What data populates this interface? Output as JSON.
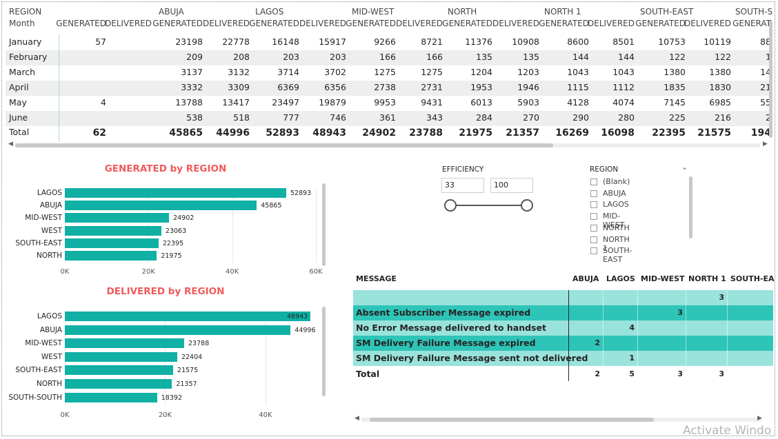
{
  "colors": {
    "bar": "#10b0a4",
    "title": "#f05a5b",
    "row_alt": "#eeeeee",
    "msg_light": "#99e3dc",
    "msg_dark": "#2ec4b8"
  },
  "matrix": {
    "header_top": [
      "REGION",
      "",
      "",
      "ABUJA",
      "",
      "LAGOS",
      "",
      "MID-WEST",
      "",
      "NORTH",
      "",
      "NORTH 1",
      "",
      "SOUTH-EAST",
      "",
      "SOUTH-S"
    ],
    "header_sub": [
      "Month",
      "GENERATED",
      "DELIVERED",
      "GENERATED",
      "DELIVERED",
      "GENERATED",
      "DELIVERED",
      "GENERATED",
      "DELIVERED",
      "GENERATED",
      "DELIVERED",
      "GENERATED",
      "DELIVERED",
      "GENERATED",
      "DELIVERED",
      "GENERAT"
    ],
    "rows": [
      {
        "month": "January",
        "vals": [
          "57",
          "",
          "23198",
          "22778",
          "16148",
          "15917",
          "9266",
          "8721",
          "11376",
          "10908",
          "8600",
          "8501",
          "10753",
          "10119",
          "88"
        ]
      },
      {
        "month": "February",
        "vals": [
          "",
          "",
          "209",
          "208",
          "203",
          "203",
          "166",
          "166",
          "135",
          "135",
          "144",
          "144",
          "122",
          "122",
          "1"
        ]
      },
      {
        "month": "March",
        "vals": [
          "",
          "",
          "3137",
          "3132",
          "3714",
          "3702",
          "1275",
          "1275",
          "1204",
          "1203",
          "1043",
          "1043",
          "1380",
          "1380",
          "14"
        ]
      },
      {
        "month": "April",
        "vals": [
          "",
          "",
          "3332",
          "3309",
          "6369",
          "6356",
          "2738",
          "2731",
          "1953",
          "1946",
          "1115",
          "1112",
          "1835",
          "1830",
          "21"
        ]
      },
      {
        "month": "May",
        "vals": [
          "4",
          "",
          "13788",
          "13417",
          "23497",
          "19879",
          "9953",
          "9431",
          "6013",
          "5903",
          "4128",
          "4074",
          "7145",
          "6985",
          "55"
        ]
      },
      {
        "month": "June",
        "vals": [
          "",
          "",
          "538",
          "518",
          "777",
          "746",
          "361",
          "343",
          "284",
          "270",
          "290",
          "280",
          "225",
          "216",
          "2"
        ]
      }
    ],
    "total": {
      "label": "Total",
      "vals": [
        "62",
        "",
        "45865",
        "44996",
        "52893",
        "48943",
        "24902",
        "23788",
        "21975",
        "21357",
        "16269",
        "16098",
        "22395",
        "21575",
        "194"
      ]
    }
  },
  "generated_chart": {
    "title": "GENERATED by REGION",
    "xticks": [
      "0K",
      "20K",
      "40K",
      "60K"
    ],
    "chart_data": {
      "type": "bar",
      "orientation": "horizontal",
      "title": "GENERATED by REGION",
      "categories": [
        "LAGOS",
        "ABUJA",
        "MID-WEST",
        "WEST",
        "SOUTH-EAST",
        "NORTH"
      ],
      "values": [
        52893,
        45865,
        24902,
        23063,
        22395,
        21975
      ],
      "xlim": [
        0,
        60000
      ]
    }
  },
  "delivered_chart": {
    "title": "DELIVERED by REGION",
    "xticks": [
      "0K",
      "20K",
      "40K"
    ],
    "chart_data": {
      "type": "bar",
      "orientation": "horizontal",
      "title": "DELIVERED by REGION",
      "categories": [
        "LAGOS",
        "ABUJA",
        "MID-WEST",
        "WEST",
        "SOUTH-EAST",
        "NORTH",
        "SOUTH-SOUTH"
      ],
      "values": [
        48943,
        44996,
        23788,
        22404,
        21575,
        21357,
        18392
      ],
      "xlim": [
        0,
        48943
      ]
    }
  },
  "efficiency": {
    "label": "EFFICIENCY",
    "min": "33",
    "max": "100"
  },
  "region_slicer": {
    "label": "REGION",
    "options": [
      "(Blank)",
      "ABUJA",
      "LAGOS",
      "MID-WEST",
      "NORTH",
      "NORTH 1",
      "SOUTH-EAST"
    ]
  },
  "messages": {
    "headers": [
      "MESSAGE",
      "ABUJA",
      "LAGOS",
      "MID-WEST",
      "NORTH 1",
      "SOUTH-EA"
    ],
    "rows": [
      {
        "text": "",
        "vals": [
          "",
          "",
          "",
          "3",
          ""
        ]
      },
      {
        "text": "Absent Subscriber Message expired",
        "vals": [
          "",
          "",
          "3",
          "",
          ""
        ]
      },
      {
        "text": "No Error Message delivered to handset",
        "vals": [
          "",
          "4",
          "",
          "",
          ""
        ]
      },
      {
        "text": "SM Delivery Failure Message expired",
        "vals": [
          "2",
          "",
          "",
          "",
          ""
        ]
      },
      {
        "text": "SM Delivery Failure Message sent not delivered",
        "vals": [
          "",
          "1",
          "",
          "",
          ""
        ]
      }
    ],
    "total": {
      "text": "Total",
      "vals": [
        "2",
        "5",
        "3",
        "3",
        ""
      ]
    }
  },
  "watermark": "Activate Windo"
}
